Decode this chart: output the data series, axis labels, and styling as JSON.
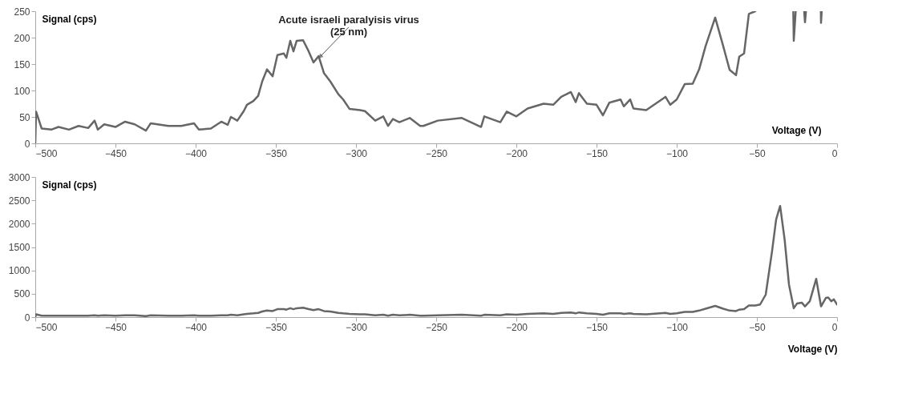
{
  "chart_data": [
    {
      "type": "line",
      "xlabel": "Voltage (V)",
      "ylabel": "Signal (cps)",
      "xlim": [
        -500,
        0
      ],
      "ylim": [
        0,
        250
      ],
      "xticks": [
        -500,
        -450,
        -400,
        -350,
        -300,
        -250,
        -200,
        -150,
        -100,
        -50,
        0
      ],
      "yticks": [
        0,
        50,
        100,
        150,
        200,
        250
      ],
      "grid": false,
      "annotations": [
        {
          "text": "Acute israeli paralyisis virus\n(25 nm)",
          "x": -322,
          "y": 165
        }
      ],
      "x": [
        -500,
        -499.5,
        -496,
        -490,
        -485.5,
        -479,
        -473,
        -467,
        -463,
        -461,
        -457,
        -450,
        -444,
        -438,
        -431,
        -428,
        -417,
        -409,
        -401,
        -398,
        -390.5,
        -384,
        -380,
        -378,
        -374,
        -370,
        -368,
        -364,
        -361,
        -358.5,
        -355.5,
        -352,
        -349,
        -345,
        -343.4,
        -341,
        -339,
        -337,
        -333,
        -329.5,
        -326.5,
        -323.3,
        -320,
        -316,
        -311,
        -308,
        -304,
        -297.5,
        -294.4,
        -288,
        -283,
        -280,
        -277,
        -273,
        -266.5,
        -260,
        -258,
        -249,
        -234,
        -222,
        -220,
        -210,
        -206,
        -200,
        -193,
        -183,
        -177,
        -172,
        -166,
        -163,
        -161,
        -156,
        -150,
        -146,
        -142,
        -135,
        -133,
        -129,
        -127,
        -119,
        -107,
        -104,
        -100,
        -95,
        -90,
        -86,
        -82,
        -76,
        -71,
        -67,
        -63,
        -61,
        -58,
        -55,
        -51
      ],
      "series": [
        {
          "color": "#666666",
          "values": [
            0,
            60,
            28,
            26,
            31,
            26,
            33,
            29,
            43,
            26,
            36,
            31,
            41,
            36,
            24,
            38,
            33,
            33,
            38,
            26,
            28,
            41,
            35,
            50,
            43,
            61,
            73,
            80,
            90,
            117,
            140,
            127,
            167,
            170,
            162,
            194,
            174,
            194,
            195,
            174,
            153,
            165,
            133,
            117,
            93,
            83,
            65,
            63,
            61,
            43,
            51,
            33,
            46,
            40,
            48,
            33,
            33,
            43,
            48,
            31,
            51,
            40,
            60,
            51,
            66,
            75,
            73,
            88,
            97,
            78,
            95,
            75,
            73,
            53,
            77,
            83,
            70,
            83,
            66,
            63,
            88,
            73,
            83,
            112,
            113,
            140,
            184,
            238,
            184,
            139,
            129,
            164,
            170,
            245,
            250
          ]
        },
        {
          "color": "#666666",
          "x": [
            -27.3,
            -27,
            -25.8
          ],
          "values": [
            250,
            194,
            250
          ]
        },
        {
          "color": "#666666",
          "x": [
            -20.5,
            -20,
            -19.4
          ],
          "values": [
            250,
            229,
            250
          ]
        },
        {
          "color": "#666666",
          "x": [
            -10.1,
            -10,
            -9.6
          ],
          "values": [
            250,
            228,
            250
          ]
        }
      ]
    },
    {
      "type": "line",
      "xlabel": "Voltage (V)",
      "ylabel": "Signal (cps)",
      "xlim": [
        -500,
        0
      ],
      "ylim": [
        0,
        3000
      ],
      "xticks": [
        -500,
        -450,
        -400,
        -350,
        -300,
        -250,
        -200,
        -150,
        -100,
        -50,
        0
      ],
      "yticks": [
        0,
        500,
        1000,
        1500,
        2000,
        2500,
        3000
      ],
      "grid": false,
      "x": [
        -500,
        -499.5,
        -496,
        -490,
        -485.5,
        -479,
        -473,
        -467,
        -463,
        -461,
        -457,
        -450,
        -444,
        -438,
        -431,
        -428,
        -417,
        -409,
        -401,
        -398,
        -390.5,
        -384,
        -380,
        -378,
        -374,
        -370,
        -368,
        -364,
        -361,
        -358.5,
        -355.5,
        -352,
        -349,
        -345,
        -343.4,
        -341,
        -339,
        -337,
        -333,
        -329.5,
        -326.5,
        -323.3,
        -320,
        -316,
        -311,
        -308,
        -304,
        -297.5,
        -294.4,
        -288,
        -283,
        -280,
        -277,
        -273,
        -266.5,
        -260,
        -258,
        -249,
        -234,
        -222,
        -220,
        -210,
        -206,
        -200,
        -193,
        -183,
        -177,
        -172,
        -166,
        -163,
        -161,
        -156,
        -150,
        -146,
        -142,
        -135,
        -133,
        -129,
        -127,
        -119,
        -107,
        -104,
        -100,
        -95,
        -90,
        -86,
        -82,
        -76,
        -71,
        -67,
        -63,
        -61,
        -58,
        -55,
        -51,
        -48,
        -44.5,
        -40.5,
        -38,
        -35.5,
        -32.7,
        -30,
        -27,
        -25,
        -22,
        -20,
        -17,
        -13,
        -10,
        -7,
        -5.5,
        -3.6,
        -2,
        0
      ],
      "series": [
        {
          "color": "#666666",
          "values": [
            0,
            60,
            30,
            30,
            30,
            30,
            30,
            30,
            40,
            30,
            40,
            30,
            40,
            40,
            20,
            40,
            30,
            30,
            40,
            30,
            30,
            40,
            40,
            50,
            40,
            60,
            70,
            80,
            90,
            120,
            140,
            130,
            170,
            170,
            160,
            190,
            170,
            190,
            200,
            170,
            150,
            170,
            130,
            120,
            90,
            80,
            70,
            60,
            60,
            40,
            50,
            30,
            50,
            40,
            50,
            30,
            30,
            40,
            50,
            30,
            50,
            40,
            60,
            50,
            70,
            80,
            70,
            90,
            100,
            80,
            100,
            80,
            70,
            50,
            80,
            80,
            70,
            80,
            70,
            60,
            90,
            70,
            80,
            110,
            110,
            140,
            180,
            240,
            180,
            140,
            130,
            160,
            170,
            250,
            250,
            270,
            480,
            1420,
            2090,
            2380,
            1660,
            700,
            190,
            290,
            310,
            230,
            340,
            820,
            230,
            410,
            420,
            340,
            380,
            270
          ]
        }
      ]
    }
  ]
}
